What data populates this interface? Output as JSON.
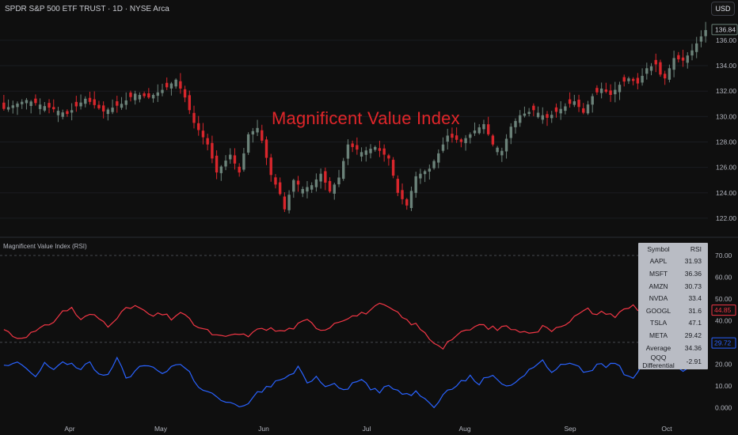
{
  "header": {
    "title": "SPDR S&P 500 ETF TRUST · 1D · NYSE Arca",
    "currency": "USD"
  },
  "overlay_title": "Magnificent Value Index",
  "rsi_pane": {
    "label": "Magnificent Value Index (RSI)",
    "table": {
      "headers": [
        "Symbol",
        "RSI"
      ],
      "rows": [
        {
          "symbol": "AAPL",
          "rsi": "31.93"
        },
        {
          "symbol": "MSFT",
          "rsi": "36.36"
        },
        {
          "symbol": "AMZN",
          "rsi": "30.73"
        },
        {
          "symbol": "NVDA",
          "rsi": "33.4"
        },
        {
          "symbol": "GOOGL",
          "rsi": "31.6"
        },
        {
          "symbol": "TSLA",
          "rsi": "47.1"
        },
        {
          "symbol": "META",
          "rsi": "29.42"
        },
        {
          "symbol": "Average",
          "rsi": "34.36"
        },
        {
          "symbol": "QQQ Differential",
          "rsi": "-2.91"
        }
      ]
    }
  },
  "colors": {
    "background": "#0f0f0f",
    "up": "#6b8279",
    "down": "#d9262c",
    "rsi_red": "#f23645",
    "rsi_blue": "#2962ff",
    "grid": "#2a2d35",
    "price_label_bg": "#0f0f0f"
  },
  "chart_data": [
    {
      "type": "candlestick",
      "title": "SPDR S&P 500 ETF TRUST · 1D · NYSE Arca",
      "y_ticks": [
        "122.00",
        "124.00",
        "126.00",
        "128.00",
        "130.00",
        "132.00",
        "134.00",
        "136.00"
      ],
      "ylim": [
        121,
        137.3
      ],
      "last_price": "136.84",
      "x_ticks": [
        "Apr",
        "May",
        "Jun",
        "Jul",
        "Aug",
        "Sep",
        "Oct"
      ],
      "waypoints": [
        [
          0,
          130.6
        ],
        [
          5,
          131.3
        ],
        [
          10,
          130.7
        ],
        [
          14,
          130.2
        ],
        [
          18,
          131.4
        ],
        [
          22,
          130.4
        ],
        [
          26,
          131.0
        ],
        [
          29,
          131.8
        ],
        [
          32,
          131.5
        ],
        [
          36,
          132.3
        ],
        [
          38,
          132.9
        ],
        [
          40,
          131.5
        ],
        [
          42,
          129.5
        ],
        [
          45,
          127.8
        ],
        [
          47,
          125.6
        ],
        [
          50,
          127.0
        ],
        [
          52,
          125.6
        ],
        [
          54,
          128.6
        ],
        [
          56,
          129.1
        ],
        [
          57,
          128.1
        ],
        [
          59,
          125.4
        ],
        [
          61,
          123.9
        ],
        [
          62,
          122.7
        ],
        [
          64,
          125.0
        ],
        [
          66,
          124.3
        ],
        [
          68,
          124.6
        ],
        [
          70,
          125.5
        ],
        [
          72,
          124.1
        ],
        [
          74,
          125.2
        ],
        [
          76,
          127.8
        ],
        [
          79,
          127.2
        ],
        [
          82,
          127.6
        ],
        [
          85,
          126.7
        ],
        [
          87,
          124.0
        ],
        [
          89,
          123.0
        ],
        [
          91,
          125.3
        ],
        [
          94,
          125.9
        ],
        [
          96,
          127.1
        ],
        [
          98,
          128.5
        ],
        [
          101,
          128.0
        ],
        [
          104,
          128.9
        ],
        [
          106,
          129.4
        ],
        [
          108,
          127.8
        ],
        [
          110,
          127.3
        ],
        [
          112,
          129.2
        ],
        [
          114,
          130.1
        ],
        [
          117,
          130.5
        ],
        [
          120,
          129.9
        ],
        [
          123,
          130.6
        ],
        [
          126,
          131.2
        ],
        [
          128,
          130.3
        ],
        [
          130,
          131.6
        ],
        [
          132,
          132.2
        ],
        [
          134,
          131.7
        ],
        [
          136,
          132.5
        ],
        [
          138,
          133.0
        ],
        [
          140,
          132.6
        ],
        [
          142,
          133.8
        ],
        [
          144,
          134.1
        ],
        [
          145,
          133.3
        ],
        [
          146,
          133.0
        ],
        [
          148,
          134.6
        ],
        [
          150,
          134.4
        ],
        [
          152,
          135.2
        ],
        [
          154,
          136.3
        ],
        [
          155,
          136.8
        ]
      ]
    },
    {
      "type": "line",
      "title": "Magnificent Value Index (RSI)",
      "y_ticks": [
        "0.000",
        "10.00",
        "20.00",
        "30.00",
        "40.00",
        "50.00",
        "60.00",
        "70.00"
      ],
      "ylim": [
        -1,
        74
      ],
      "reference_lines": [
        70,
        30
      ],
      "series": [
        {
          "name": "",
          "color": "#f23645",
          "last_value": "44.85",
          "waypoints": [
            [
              0,
              36
            ],
            [
              3,
              32
            ],
            [
              6,
              34
            ],
            [
              9,
              37
            ],
            [
              11,
              40
            ],
            [
              13,
              44
            ],
            [
              15,
              46
            ],
            [
              17,
              40
            ],
            [
              19,
              43
            ],
            [
              21,
              41
            ],
            [
              23,
              38
            ],
            [
              25,
              42
            ],
            [
              27,
              45
            ],
            [
              29,
              47
            ],
            [
              31,
              44
            ],
            [
              33,
              42
            ],
            [
              35,
              43
            ],
            [
              37,
              41
            ],
            [
              39,
              44
            ],
            [
              41,
              40
            ],
            [
              43,
              37
            ],
            [
              45,
              35
            ],
            [
              47,
              33
            ],
            [
              49,
              32
            ],
            [
              51,
              34
            ],
            [
              53,
              33
            ],
            [
              55,
              34
            ],
            [
              57,
              37
            ],
            [
              59,
              36
            ],
            [
              61,
              35
            ],
            [
              63,
              36
            ],
            [
              65,
              38
            ],
            [
              67,
              40
            ],
            [
              69,
              37
            ],
            [
              71,
              36
            ],
            [
              73,
              39
            ],
            [
              75,
              41
            ],
            [
              77,
              42
            ],
            [
              79,
              43
            ],
            [
              81,
              45
            ],
            [
              83,
              47
            ],
            [
              85,
              46
            ],
            [
              87,
              43
            ],
            [
              89,
              40
            ],
            [
              91,
              38
            ],
            [
              93,
              34
            ],
            [
              95,
              30
            ],
            [
              97,
              28
            ],
            [
              99,
              32
            ],
            [
              101,
              34
            ],
            [
              103,
              36
            ],
            [
              105,
              38
            ],
            [
              107,
              37
            ],
            [
              109,
              36
            ],
            [
              111,
              38
            ],
            [
              113,
              35
            ],
            [
              115,
              36
            ],
            [
              117,
              34
            ],
            [
              119,
              37
            ],
            [
              121,
              36
            ],
            [
              123,
              38
            ],
            [
              125,
              40
            ],
            [
              127,
              43
            ],
            [
              129,
              45
            ],
            [
              131,
              43
            ],
            [
              133,
              44
            ],
            [
              135,
              42
            ],
            [
              137,
              45
            ],
            [
              139,
              47
            ],
            [
              141,
              44
            ],
            [
              143,
              46
            ],
            [
              145,
              49
            ],
            [
              147,
              48
            ],
            [
              149,
              46
            ],
            [
              151,
              47
            ],
            [
              153,
              43
            ],
            [
              155,
              45
            ]
          ]
        },
        {
          "name": "",
          "color": "#2962ff",
          "last_value": "29.72",
          "waypoints": [
            [
              0,
              19
            ],
            [
              3,
              20
            ],
            [
              5,
              18
            ],
            [
              7,
              14
            ],
            [
              9,
              20
            ],
            [
              11,
              18
            ],
            [
              13,
              21
            ],
            [
              15,
              20
            ],
            [
              17,
              17
            ],
            [
              19,
              21
            ],
            [
              21,
              15
            ],
            [
              23,
              16
            ],
            [
              25,
              22
            ],
            [
              27,
              14
            ],
            [
              29,
              16
            ],
            [
              31,
              20
            ],
            [
              33,
              18
            ],
            [
              35,
              16
            ],
            [
              37,
              19
            ],
            [
              39,
              20
            ],
            [
              41,
              16
            ],
            [
              43,
              10
            ],
            [
              45,
              7
            ],
            [
              47,
              5
            ],
            [
              49,
              2
            ],
            [
              51,
              1
            ],
            [
              53,
              0
            ],
            [
              55,
              5
            ],
            [
              57,
              8
            ],
            [
              59,
              10
            ],
            [
              61,
              13
            ],
            [
              63,
              14
            ],
            [
              65,
              18
            ],
            [
              67,
              12
            ],
            [
              69,
              14
            ],
            [
              71,
              10
            ],
            [
              73,
              12
            ],
            [
              75,
              8
            ],
            [
              77,
              11
            ],
            [
              79,
              13
            ],
            [
              81,
              9
            ],
            [
              83,
              7
            ],
            [
              85,
              10
            ],
            [
              87,
              8
            ],
            [
              89,
              6
            ],
            [
              91,
              7
            ],
            [
              93,
              5
            ],
            [
              95,
              1
            ],
            [
              97,
              6
            ],
            [
              99,
              9
            ],
            [
              101,
              12
            ],
            [
              103,
              14
            ],
            [
              105,
              11
            ],
            [
              107,
              15
            ],
            [
              109,
              13
            ],
            [
              111,
              10
            ],
            [
              113,
              12
            ],
            [
              115,
              15
            ],
            [
              117,
              19
            ],
            [
              119,
              21
            ],
            [
              121,
              17
            ],
            [
              123,
              19
            ],
            [
              125,
              21
            ],
            [
              127,
              18
            ],
            [
              129,
              16
            ],
            [
              131,
              20
            ],
            [
              133,
              19
            ],
            [
              135,
              21
            ],
            [
              137,
              16
            ],
            [
              139,
              14
            ],
            [
              141,
              20
            ],
            [
              143,
              21
            ],
            [
              145,
              18
            ],
            [
              147,
              20
            ],
            [
              149,
              18
            ],
            [
              151,
              17
            ],
            [
              153,
              22
            ],
            [
              155,
              30
            ]
          ]
        }
      ]
    }
  ]
}
